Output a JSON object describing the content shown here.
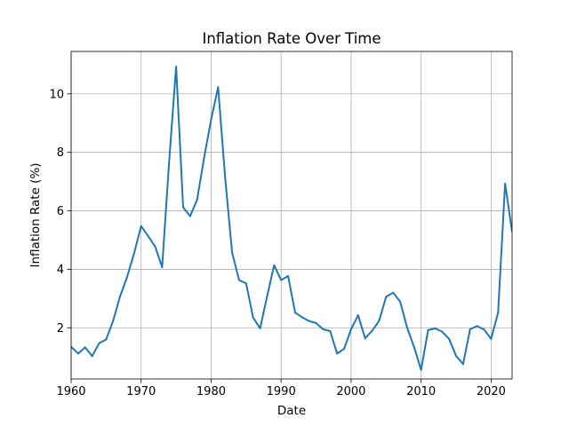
{
  "chart_data": {
    "type": "line",
    "title": "Inflation Rate Over Time",
    "xlabel": "Date",
    "ylabel": "Inflation Rate (%)",
    "xlim": [
      1960,
      2023
    ],
    "ylim": [
      0.25,
      11.45
    ],
    "grid": true,
    "x_ticks": [
      1960,
      1970,
      1980,
      1990,
      2000,
      2010,
      2020
    ],
    "x_tick_labels": [
      "1960",
      "1970",
      "1980",
      "1990",
      "2000",
      "2010",
      "2020"
    ],
    "y_ticks": [
      2,
      4,
      6,
      8,
      10
    ],
    "y_tick_labels": [
      "2",
      "4",
      "6",
      "8",
      "10"
    ],
    "line_color": "#1f77b4",
    "series": [
      {
        "x": [
          1960,
          1961,
          1962,
          1963,
          1964,
          1965,
          1966,
          1967,
          1968,
          1969,
          1970,
          1971,
          1972,
          1973,
          1974,
          1975,
          1976,
          1977,
          1978,
          1979,
          1980,
          1981,
          1982,
          1983,
          1984,
          1985,
          1986,
          1987,
          1988,
          1989,
          1990,
          1991,
          1992,
          1993,
          1994,
          1995,
          1996,
          1997,
          1998,
          1999,
          2000,
          2001,
          2002,
          2003,
          2004,
          2005,
          2006,
          2007,
          2008,
          2009,
          2010,
          2011,
          2012,
          2013,
          2014,
          2015,
          2016,
          2017,
          2018,
          2019,
          2020,
          2021,
          2022,
          2023
        ],
        "values": [
          1.35,
          1.12,
          1.33,
          1.03,
          1.47,
          1.6,
          2.24,
          3.08,
          3.74,
          4.55,
          5.48,
          5.14,
          4.78,
          4.07,
          7.68,
          10.93,
          6.12,
          5.82,
          6.38,
          7.82,
          9.12,
          10.23,
          7.14,
          4.57,
          3.63,
          3.52,
          2.35,
          1.98,
          3.08,
          4.14,
          3.63,
          3.77,
          2.52,
          2.36,
          2.23,
          2.16,
          1.95,
          1.89,
          1.12,
          1.28,
          1.95,
          2.43,
          1.64,
          1.9,
          2.24,
          3.06,
          3.2,
          2.9,
          2.01,
          1.34,
          0.56,
          1.92,
          1.98,
          1.87,
          1.62,
          1.04,
          0.76,
          1.95,
          2.06,
          1.94,
          1.62,
          2.52,
          6.93,
          5.29
        ]
      }
    ]
  }
}
